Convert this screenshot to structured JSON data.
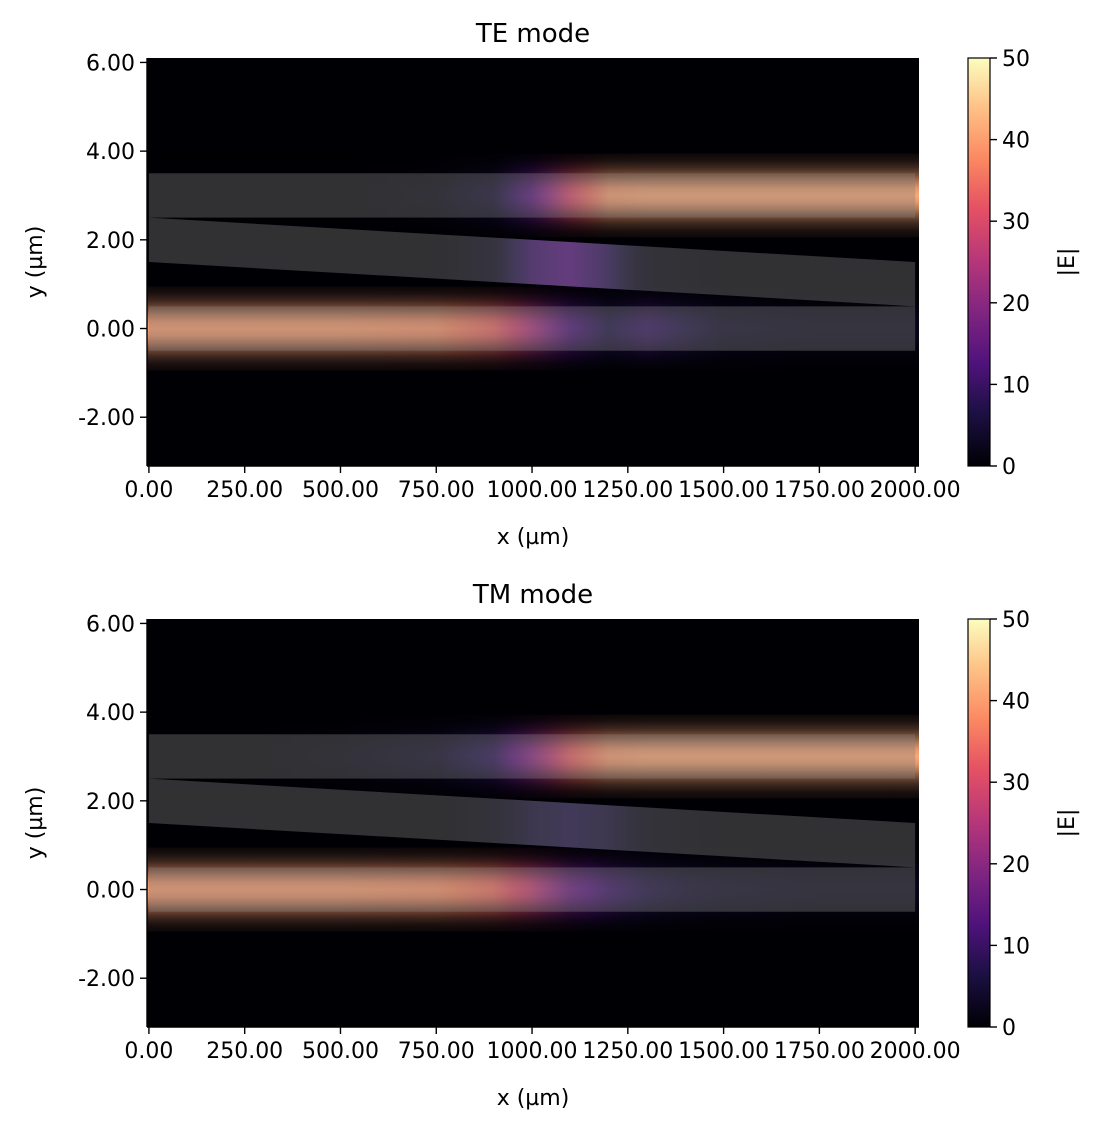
{
  "figure": {
    "panels": [
      {
        "id": "te",
        "title": "TE mode",
        "xlabel": "x (µm)",
        "ylabel": "y (µm)",
        "colorbar_label": "|E|"
      },
      {
        "id": "tm",
        "title": "TM mode",
        "xlabel": "x (µm)",
        "ylabel": "y (µm)",
        "colorbar_label": "|E|"
      }
    ]
  },
  "chart_data": [
    {
      "type": "heatmap",
      "title": "TE mode",
      "xlabel": "x (µm)",
      "ylabel": "y (µm)",
      "xlim": [
        -5,
        2010
      ],
      "ylim": [
        -3.1,
        6.1
      ],
      "xticks": [
        0,
        250,
        500,
        750,
        1000,
        1250,
        1500,
        1750,
        2000
      ],
      "xtick_labels": [
        "0.00",
        "250.00",
        "500.00",
        "750.00",
        "1000.00",
        "1250.00",
        "1500.00",
        "1750.00",
        "2000.00"
      ],
      "yticks": [
        -2,
        0,
        2,
        4,
        6
      ],
      "ytick_labels": [
        "-2.00",
        "0.00",
        "2.00",
        "4.00",
        "6.00"
      ],
      "colormap": "magma",
      "colorbar": {
        "label": "|E|",
        "range": [
          0,
          50
        ],
        "ticks": [
          0,
          10,
          20,
          30,
          40,
          50
        ],
        "tick_labels": [
          "0",
          "10",
          "20",
          "30",
          "40",
          "50"
        ]
      },
      "waveguides": [
        {
          "name": "lower",
          "x": [
            0,
            2000
          ],
          "y_bottom": [
            -0.5,
            -0.5
          ],
          "y_top": [
            0.5,
            0.5
          ]
        },
        {
          "name": "taper",
          "x": [
            0,
            2000
          ],
          "y_bottom": [
            1.5,
            0.5
          ],
          "y_top": [
            2.5,
            1.5
          ]
        },
        {
          "name": "upper",
          "x": [
            0,
            2000
          ],
          "y_bottom": [
            2.5,
            2.5
          ],
          "y_top": [
            3.5,
            3.5
          ]
        }
      ],
      "field_profile": {
        "x": [
          0,
          250,
          500,
          750,
          900,
          1000,
          1100,
          1200,
          1300,
          1400,
          1500,
          1750,
          2000
        ],
        "lower_waveguide_E": [
          40,
          40,
          40,
          39,
          34,
          24,
          12,
          6,
          9,
          6,
          3,
          2,
          2
        ],
        "taper_E": [
          0,
          0,
          0,
          1,
          4,
          10,
          13,
          8,
          3,
          2,
          1,
          1,
          1
        ],
        "upper_waveguide_E": [
          0,
          0,
          0,
          1,
          4,
          14,
          30,
          40,
          41,
          41,
          41,
          41,
          41
        ]
      }
    },
    {
      "type": "heatmap",
      "title": "TM mode",
      "xlabel": "x (µm)",
      "ylabel": "y (µm)",
      "xlim": [
        -5,
        2010
      ],
      "ylim": [
        -3.1,
        6.1
      ],
      "xticks": [
        0,
        250,
        500,
        750,
        1000,
        1250,
        1500,
        1750,
        2000
      ],
      "xtick_labels": [
        "0.00",
        "250.00",
        "500.00",
        "750.00",
        "1000.00",
        "1250.00",
        "1500.00",
        "1750.00",
        "2000.00"
      ],
      "yticks": [
        -2,
        0,
        2,
        4,
        6
      ],
      "ytick_labels": [
        "-2.00",
        "0.00",
        "2.00",
        "4.00",
        "6.00"
      ],
      "colormap": "magma",
      "colorbar": {
        "label": "|E|",
        "range": [
          0,
          50
        ],
        "ticks": [
          0,
          10,
          20,
          30,
          40,
          50
        ],
        "tick_labels": [
          "0",
          "10",
          "20",
          "30",
          "40",
          "50"
        ]
      },
      "waveguides": [
        {
          "name": "lower",
          "x": [
            0,
            2000
          ],
          "y_bottom": [
            -0.5,
            -0.5
          ],
          "y_top": [
            0.5,
            0.5
          ]
        },
        {
          "name": "taper",
          "x": [
            0,
            2000
          ],
          "y_bottom": [
            1.5,
            0.5
          ],
          "y_top": [
            2.5,
            1.5
          ]
        },
        {
          "name": "upper",
          "x": [
            0,
            2000
          ],
          "y_bottom": [
            2.5,
            2.5
          ],
          "y_top": [
            3.5,
            3.5
          ]
        }
      ],
      "field_profile": {
        "x": [
          0,
          250,
          500,
          750,
          900,
          1000,
          1100,
          1200,
          1300,
          1400,
          1500,
          1750,
          2000
        ],
        "lower_waveguide_E": [
          40,
          40,
          40,
          39,
          35,
          27,
          16,
          10,
          6,
          4,
          3,
          2,
          2
        ],
        "taper_E": [
          0,
          0,
          0,
          1,
          3,
          6,
          7,
          6,
          3,
          2,
          1,
          1,
          1
        ],
        "upper_waveguide_E": [
          0,
          0,
          1,
          3,
          8,
          20,
          33,
          40,
          41,
          41,
          41,
          41,
          41
        ]
      }
    }
  ]
}
